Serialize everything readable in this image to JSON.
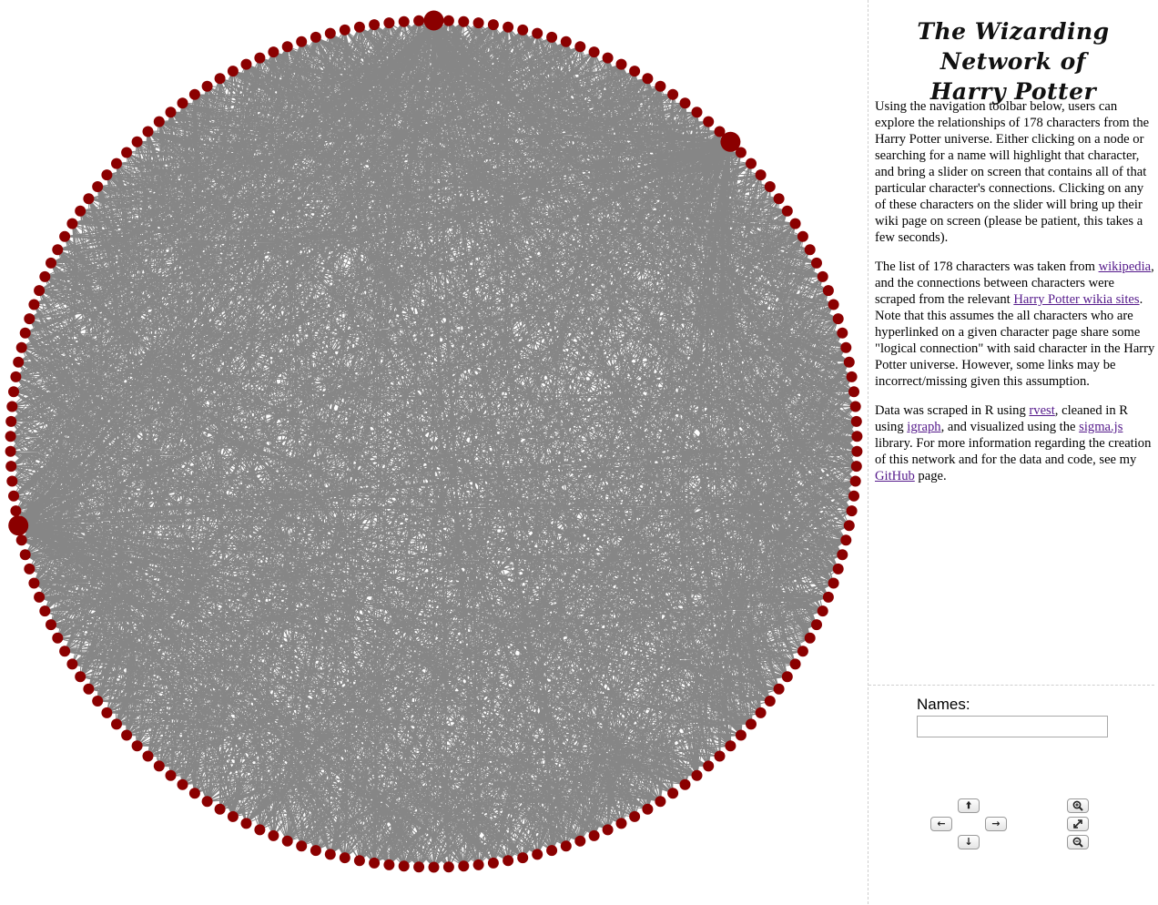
{
  "title_line1": "The Wizarding Network of",
  "title_line2": "Harry Potter",
  "description": {
    "p1": "Using the navigation toolbar below, users can explore the relationships of 178 characters from the Harry Potter universe. Either clicking on a node or searching for a name will highlight that character, and bring a slider on screen that contains all of that particular character's connections. Clicking on any of these characters on the slider will bring up their wiki page on screen (please be patient, this takes a few seconds).",
    "p2": {
      "t1": "The list of 178 characters was taken from ",
      "link_wikipedia": "wikipedia",
      "t2": ", and the connections between characters were scraped from the relevant ",
      "link_wikia": "Harry Potter wikia sites",
      "t3": ". Note that this assumes the all characters who are hyperlinked on a given character page share some \"logical connection\" with said character in the Harry Potter universe. However, some links may be incorrect/missing given this assumption."
    },
    "p3": {
      "t1": "Data was scraped in R using ",
      "link_rvest": "rvest",
      "t2": ", cleaned in R using ",
      "link_igraph": "igraph",
      "t3": ", and visualized using the ",
      "link_sigma": "sigma.js",
      "t4": " library. For more information regarding the creation of this network and for the data and code, see my ",
      "link_github": "GitHub",
      "t5": " page."
    }
  },
  "search": {
    "label": "Names:",
    "value": "",
    "placeholder": ""
  },
  "nav_icons": {
    "pan_up": "arrow-up-icon",
    "pan_left": "arrow-left-icon",
    "pan_right": "arrow-right-icon",
    "pan_down": "arrow-down-icon",
    "zoom_in": "zoom-in-icon",
    "reset": "expand-icon",
    "zoom_out": "zoom-out-icon"
  },
  "colors": {
    "node": "#8b0000",
    "edge": "#808080",
    "link": "#551a8b"
  },
  "network": {
    "node_count": 178,
    "layout": "circle",
    "large_nodes": [
      0,
      22,
      128
    ]
  }
}
